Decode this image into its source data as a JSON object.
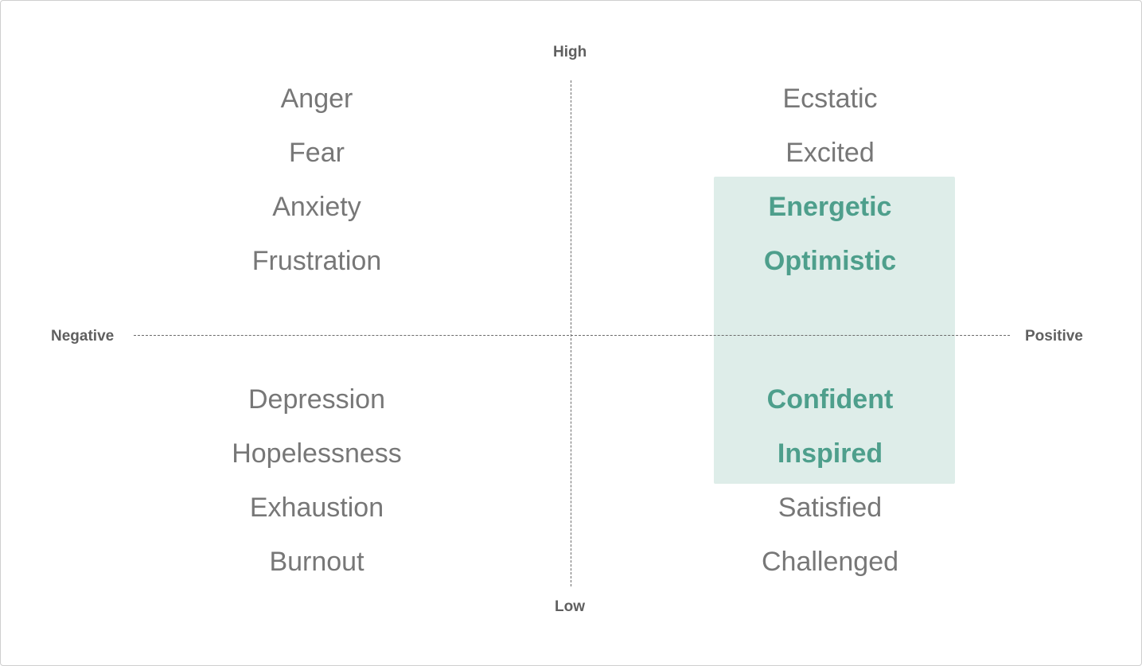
{
  "axes": {
    "top_label": "High",
    "bottom_label": "Low",
    "left_label": "Negative",
    "right_label": "Positive"
  },
  "quadrants": {
    "top_left": [
      "Anger",
      "Fear",
      "Anxiety",
      "Frustration"
    ],
    "top_right": [
      "Ecstatic",
      "Excited",
      "Energetic",
      "Optimistic"
    ],
    "bottom_left": [
      "Depression",
      "Hopelessness",
      "Exhaustion",
      "Burnout"
    ],
    "bottom_right": [
      "Confident",
      "Inspired",
      "Satisfied",
      "Challenged"
    ]
  },
  "highlighted": [
    "Energetic",
    "Optimistic",
    "Confident",
    "Inspired"
  ],
  "colors": {
    "highlight_fill": "#deede9",
    "highlight_text": "#4e9f8c",
    "text": "#777777",
    "axis": "#6b6b6b"
  }
}
